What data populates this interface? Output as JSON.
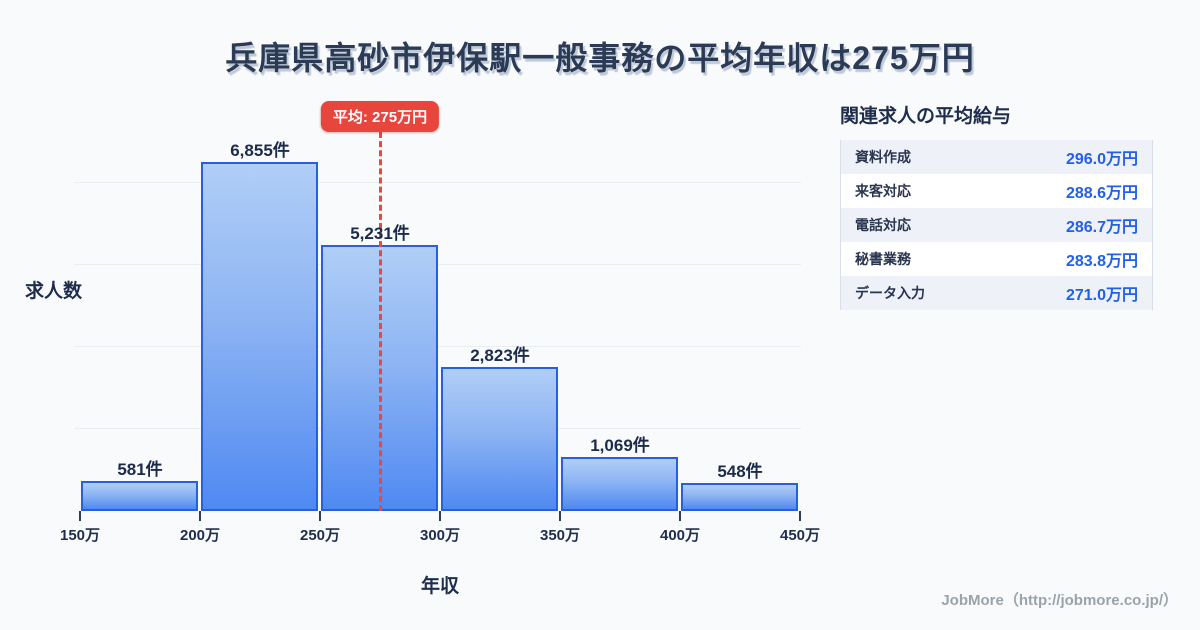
{
  "title": "兵庫県高砂市伊保駅一般事務の平均年収は275万円",
  "chart_data": {
    "type": "bar",
    "title": "兵庫県高砂市伊保駅一般事務の平均年収は275万円",
    "xlabel": "年収",
    "ylabel": "求人数",
    "x_tick_labels": [
      "150万",
      "200万",
      "250万",
      "300万",
      "350万",
      "400万",
      "450万"
    ],
    "bin_edges_manyen": [
      150,
      200,
      250,
      300,
      350,
      400,
      450
    ],
    "values": [
      581,
      6855,
      5231,
      2823,
      1069,
      548
    ],
    "bar_labels": [
      "581件",
      "6,855件",
      "5,231件",
      "2,823件",
      "1,069件",
      "548件"
    ],
    "ylim": [
      0,
      6855
    ],
    "grid": true,
    "legend": "none",
    "average": {
      "label": "平均: 275万円",
      "value_manyen": 275
    },
    "colors": {
      "bar_fill_top": "#b0cef6",
      "bar_fill_bottom": "#4f89f2",
      "bar_border": "#2760db",
      "average_line": "#e8453c",
      "grid": "#e9edf4",
      "background": "#f8fafc"
    }
  },
  "related_panel": {
    "title": "関連求人の平均給与",
    "rows": [
      {
        "label": "資料作成",
        "value": "296.0万円"
      },
      {
        "label": "来客対応",
        "value": "288.6万円"
      },
      {
        "label": "電話対応",
        "value": "286.7万円"
      },
      {
        "label": "秘書業務",
        "value": "283.8万円"
      },
      {
        "label": "データ入力",
        "value": "271.0万円"
      }
    ],
    "value_color": "#2160e8"
  },
  "footer": {
    "credit": "JobMore（http://jobmore.co.jp/）"
  }
}
